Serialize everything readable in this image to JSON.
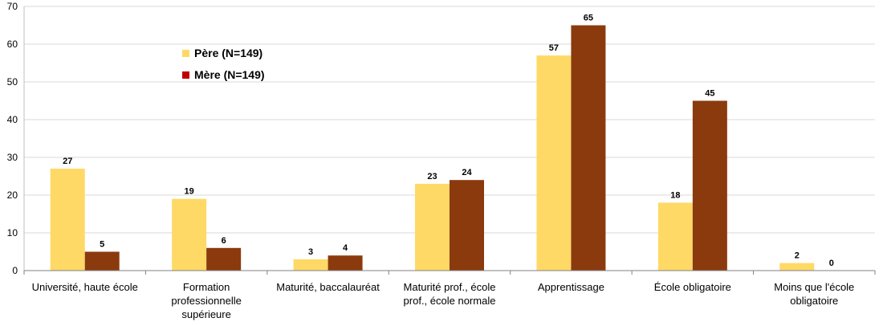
{
  "chart_data": {
    "type": "bar",
    "categories": [
      "Université, haute école",
      "Formation professionnelle supérieure",
      "Maturité, baccalauréat",
      "Maturité prof., école prof., école normale",
      "Apprentissage",
      "École obligatoire",
      "Moins que l'école obligatoire"
    ],
    "category_lines": [
      [
        "Université, haute école"
      ],
      [
        "Formation",
        "professionnelle",
        "supérieure"
      ],
      [
        "Maturité, baccalauréat"
      ],
      [
        "Maturité prof., école",
        "prof., école normale"
      ],
      [
        "Apprentissage"
      ],
      [
        "École obligatoire"
      ],
      [
        "Moins que l'école",
        "obligatoire"
      ]
    ],
    "series": [
      {
        "name": "Père (N=149)",
        "values": [
          27,
          19,
          3,
          23,
          57,
          18,
          2
        ],
        "color": "#FFD966",
        "legend_color": "#FFD966"
      },
      {
        "name": "Mère (N=149)",
        "values": [
          5,
          6,
          4,
          24,
          65,
          45,
          0
        ],
        "color": "#8B3A0E",
        "legend_color": "#C00000"
      }
    ],
    "ylim": [
      0,
      70
    ],
    "yticks": [
      0,
      10,
      20,
      30,
      40,
      50,
      60,
      70
    ],
    "grid": true,
    "legend_position": "top-left inside"
  }
}
